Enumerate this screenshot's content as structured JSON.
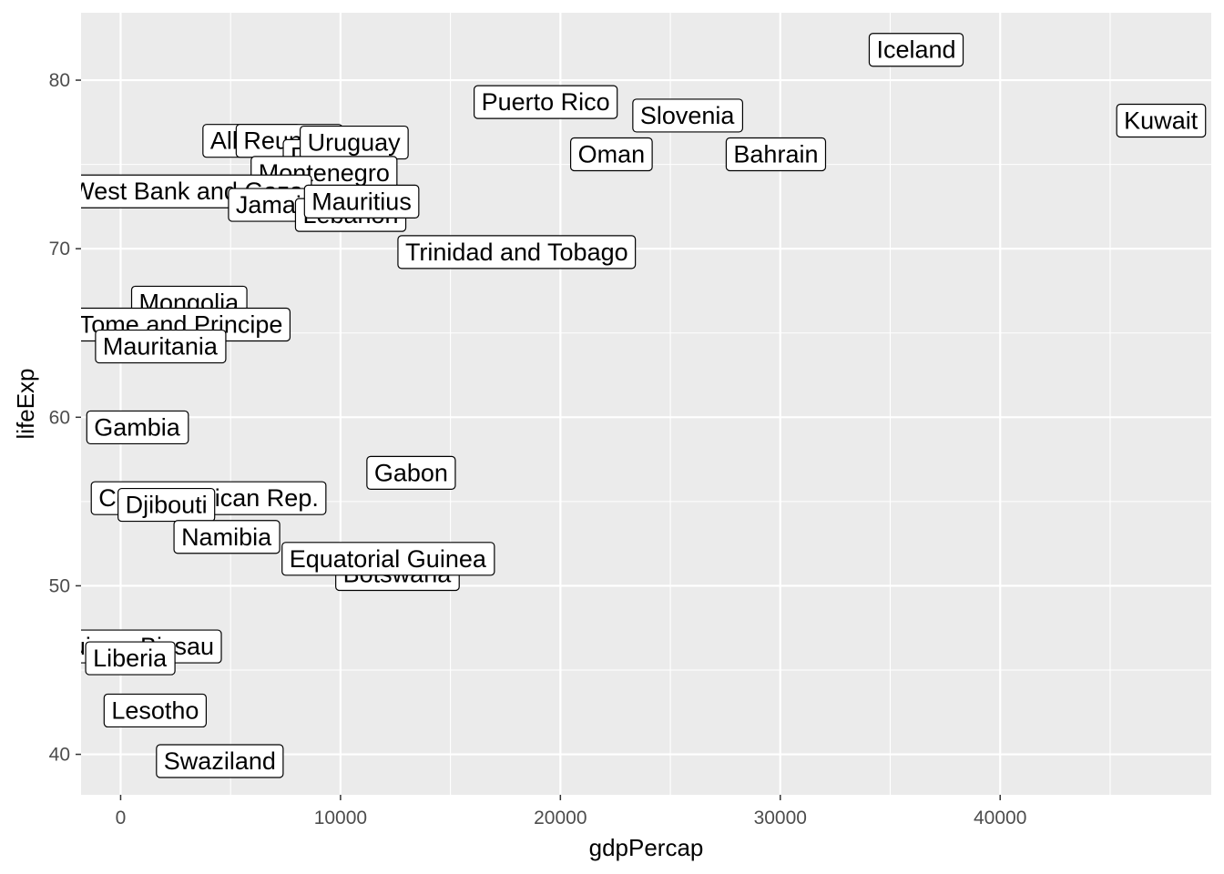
{
  "chart_data": {
    "type": "scatter",
    "xlabel": "gdpPercap",
    "ylabel": "lifeExp",
    "xlim": [
      -1800,
      49600
    ],
    "ylim": [
      37.6,
      84
    ],
    "x_ticks": [
      0,
      10000,
      20000,
      30000,
      40000
    ],
    "x_tick_labels": [
      "0",
      "10000",
      "20000",
      "30000",
      "40000"
    ],
    "y_ticks": [
      40,
      50,
      60,
      70,
      80
    ],
    "y_tick_labels": [
      "40",
      "50",
      "60",
      "70",
      "80"
    ],
    "grid": true,
    "panel_background": "#ebebeb",
    "grid_color": "#ffffff",
    "points": [
      {
        "label": "Iceland",
        "x": 36180,
        "y": 81.8
      },
      {
        "label": "Kuwait",
        "x": 47310,
        "y": 77.6
      },
      {
        "label": "Puerto Rico",
        "x": 19330,
        "y": 78.7
      },
      {
        "label": "Slovenia",
        "x": 25770,
        "y": 77.9
      },
      {
        "label": "Oman",
        "x": 22320,
        "y": 75.6
      },
      {
        "label": "Bahrain",
        "x": 29800,
        "y": 75.6
      },
      {
        "label": "Albania",
        "x": 5940,
        "y": 76.4
      },
      {
        "label": "Reunion",
        "x": 7670,
        "y": 76.4
      },
      {
        "label": "Panama",
        "x": 9810,
        "y": 75.5
      },
      {
        "label": "Uruguay",
        "x": 10610,
        "y": 76.3
      },
      {
        "label": "Montenegro",
        "x": 9250,
        "y": 74.5
      },
      {
        "label": "West Bank and Gaza",
        "x": 3030,
        "y": 73.4
      },
      {
        "label": "Jamaica",
        "x": 7320,
        "y": 72.6
      },
      {
        "label": "Lebanon",
        "x": 10460,
        "y": 72.0
      },
      {
        "label": "Mauritius",
        "x": 10960,
        "y": 72.8
      },
      {
        "label": "Trinidad and Tobago",
        "x": 18010,
        "y": 69.8
      },
      {
        "label": "Mongolia",
        "x": 3100,
        "y": 66.8
      },
      {
        "label": "Sao Tome and Principe",
        "x": 1600,
        "y": 65.5
      },
      {
        "label": "Mauritania",
        "x": 1800,
        "y": 64.2
      },
      {
        "label": "Gambia",
        "x": 750,
        "y": 59.4
      },
      {
        "label": "Gabon",
        "x": 13210,
        "y": 56.7
      },
      {
        "label": "Central African Rep.",
        "x": 4000,
        "y": 55.2
      },
      {
        "label": "Djibouti",
        "x": 2080,
        "y": 54.8
      },
      {
        "label": "Namibia",
        "x": 4810,
        "y": 52.9
      },
      {
        "label": "Botswana",
        "x": 12570,
        "y": 50.7
      },
      {
        "label": "Equatorial Guinea",
        "x": 12150,
        "y": 51.6
      },
      {
        "label": "Guinea-Bissau",
        "x": 580,
        "y": 46.4
      },
      {
        "label": "Liberia",
        "x": 420,
        "y": 45.7
      },
      {
        "label": "Lesotho",
        "x": 1570,
        "y": 42.6
      },
      {
        "label": "Swaziland",
        "x": 4510,
        "y": 39.6
      }
    ]
  }
}
